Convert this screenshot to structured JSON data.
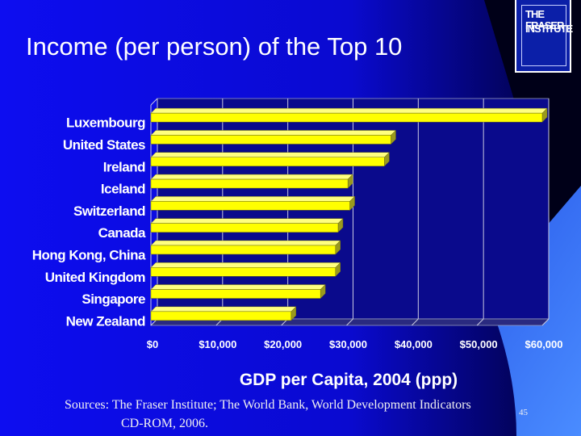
{
  "slide": {
    "title": "Income (per person) of the Top 10",
    "logo_lines": [
      "THE FRASER",
      "INSTITUTE"
    ],
    "sources_line1": "Sources: The Fraser Institute; The World Bank, World Development Indicators",
    "sources_line2": "CD-ROM, 2006.",
    "page_number": "45"
  },
  "colors": {
    "background": "#0b0bd8",
    "plot_area": "#0a0a8c",
    "bar_fill": "#ffff00",
    "bar_shade": "#9a9a1e",
    "text": "#ffffff"
  },
  "chart_data": {
    "type": "bar",
    "orientation": "horizontal",
    "categories": [
      "Luxembourg",
      "United States",
      "Ireland",
      "Iceland",
      "Switzerland",
      "Canada",
      "Hong Kong, China",
      "United Kingdom",
      "Singapore",
      "New Zealand"
    ],
    "values": [
      60000,
      36800,
      35800,
      30200,
      30500,
      28700,
      28300,
      28300,
      26000,
      21500
    ],
    "xlabel": "GDP per Capita, 2004 (ppp)",
    "xlim": [
      0,
      60000
    ],
    "xticks": [
      "$0",
      "$10,000",
      "$20,000",
      "$30,000",
      "$40,000",
      "$50,000",
      "$60,000"
    ],
    "grid": "vertical"
  }
}
